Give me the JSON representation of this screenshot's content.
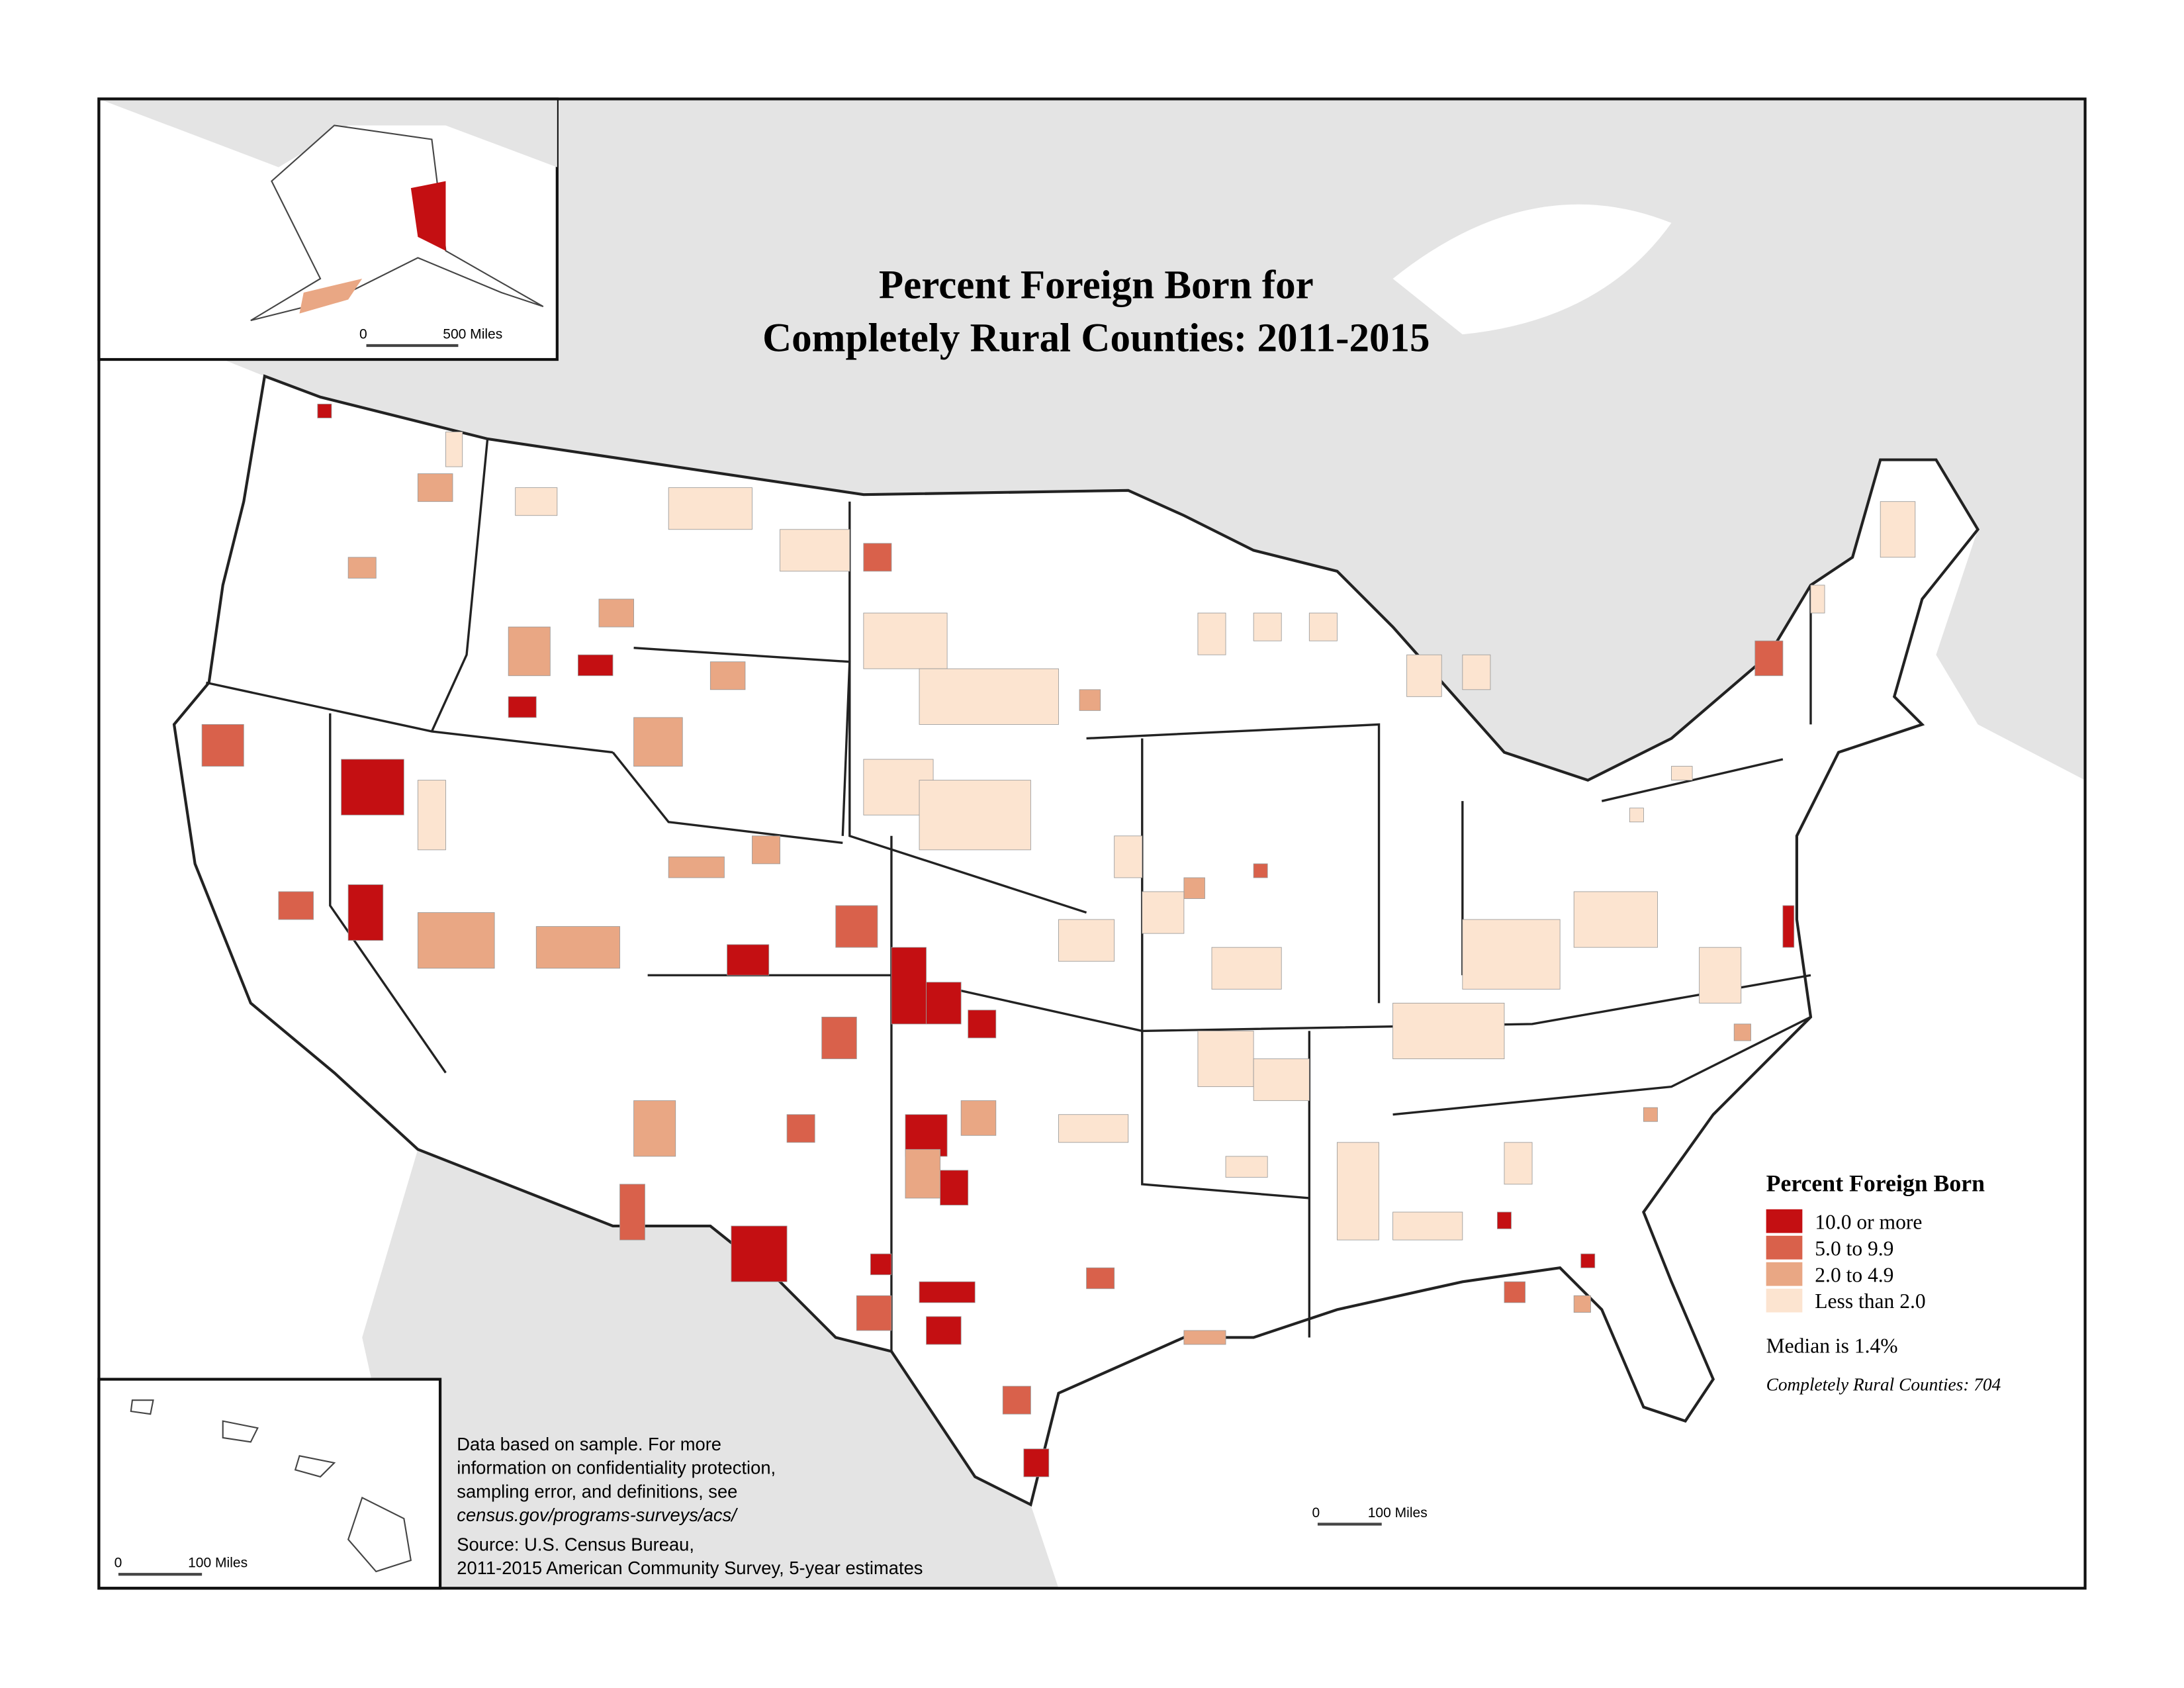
{
  "title": [
    "Percent Foreign Born for",
    "Completely Rural Counties: 2011-2015"
  ],
  "legend": {
    "title": "Percent Foreign Born",
    "items": [
      {
        "label": "10.0 or more",
        "color": "#c40f12"
      },
      {
        "label": "5.0 to 9.9",
        "color": "#d9614b"
      },
      {
        "label": "2.0 to 4.9",
        "color": "#e9a784"
      },
      {
        "label": "Less than 2.0",
        "color": "#fce4d0"
      }
    ]
  },
  "median": "Median is 1.4%",
  "count": "Completely Rural Counties: 704",
  "note": [
    "Data based on sample. For more",
    "information on confidentiality protection,",
    "sampling error, and definitions, see",
    "census.gov/programs-surveys/acs/"
  ],
  "source": [
    "Source: U.S. Census Bureau,",
    "2011-2015 American Community Survey, 5-year estimates"
  ],
  "scale_bars": {
    "alaska": [
      "0",
      "500 Miles"
    ],
    "hawaii": [
      "0",
      "100 Miles"
    ],
    "conus": [
      "0",
      "100 Miles"
    ]
  }
}
